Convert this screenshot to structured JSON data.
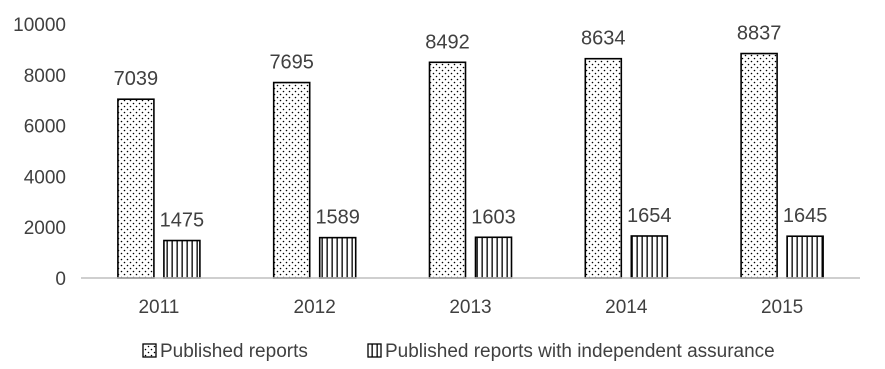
{
  "chart_data": {
    "type": "bar",
    "title": "",
    "xlabel": "",
    "ylabel": "",
    "categories": [
      "2011",
      "2012",
      "2013",
      "2014",
      "2015"
    ],
    "series": [
      {
        "name": "Published reports",
        "values": [
          7039,
          7695,
          8492,
          8634,
          8837
        ],
        "pattern": "dots"
      },
      {
        "name": "Published reports with independent assurance",
        "values": [
          1475,
          1589,
          1603,
          1654,
          1645
        ],
        "pattern": "vertical-lines"
      }
    ],
    "ylim": [
      0,
      10000
    ],
    "yticks": [
      0,
      2000,
      4000,
      6000,
      8000,
      10000
    ],
    "grid": false,
    "legend": "bottom",
    "colors": {
      "bar_fill": "#ffffff",
      "bar_stroke": "#000000",
      "pattern": "#000000",
      "axis": "#bfbfbf",
      "text": "#404040"
    }
  }
}
